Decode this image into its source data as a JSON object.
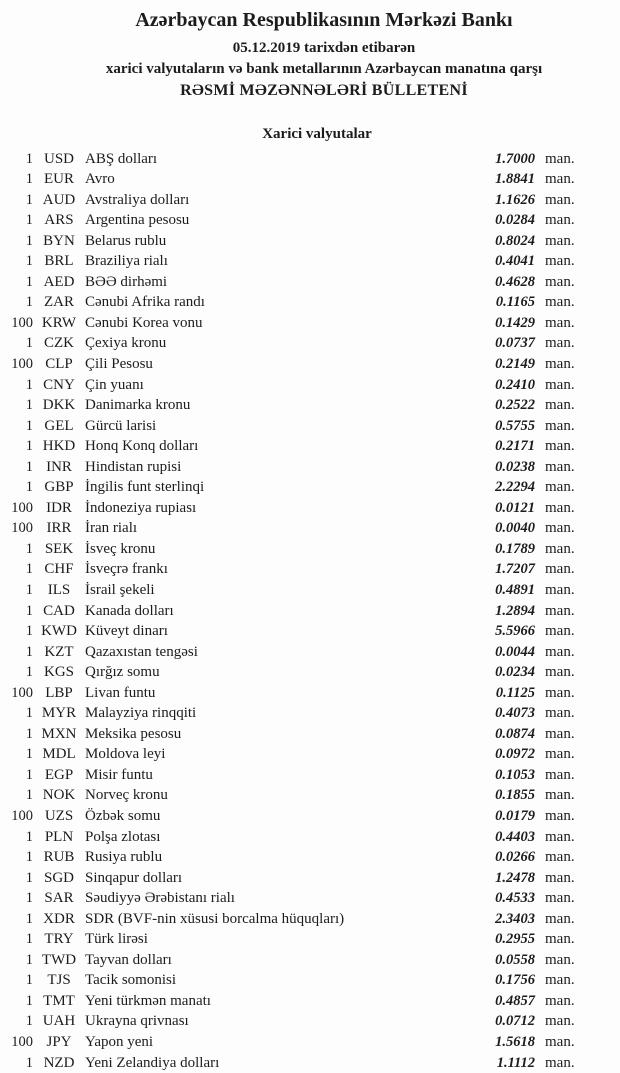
{
  "header": {
    "bank_name": "Azərbaycan Respublikasının Mərkəzi Bankı",
    "date_line": "05.12.2019 tarixdən etibarən",
    "subject_line": "xarici valyutaların və bank metallarının Azərbaycan manatına qarşı",
    "bulletin_line": "RƏSMİ MƏZƏNNƏLƏRİ BÜLLETENİ"
  },
  "section": {
    "title": "Xarici valyutalar"
  },
  "unit_label": "man.",
  "rates": [
    {
      "qty": "1",
      "code": "USD",
      "name": "ABŞ dolları",
      "rate": "1.7000"
    },
    {
      "qty": "1",
      "code": "EUR",
      "name": "Avro",
      "rate": "1.8841"
    },
    {
      "qty": "1",
      "code": "AUD",
      "name": "Avstraliya dolları",
      "rate": "1.1626"
    },
    {
      "qty": "1",
      "code": "ARS",
      "name": "Argentina pesosu",
      "rate": "0.0284"
    },
    {
      "qty": "1",
      "code": "BYN",
      "name": "Belarus rublu",
      "rate": "0.8024"
    },
    {
      "qty": "1",
      "code": "BRL",
      "name": "Braziliya rialı",
      "rate": "0.4041"
    },
    {
      "qty": "1",
      "code": "AED",
      "name": "BƏƏ dirhəmi",
      "rate": "0.4628"
    },
    {
      "qty": "1",
      "code": "ZAR",
      "name": "Cənubi Afrika randı",
      "rate": "0.1165"
    },
    {
      "qty": "100",
      "code": "KRW",
      "name": "Cənubi Korea vonu",
      "rate": "0.1429"
    },
    {
      "qty": "1",
      "code": "CZK",
      "name": "Çexiya kronu",
      "rate": "0.0737"
    },
    {
      "qty": "100",
      "code": "CLP",
      "name": "Çili Pesosu",
      "rate": "0.2149"
    },
    {
      "qty": "1",
      "code": "CNY",
      "name": "Çin yuanı",
      "rate": "0.2410"
    },
    {
      "qty": "1",
      "code": "DKK",
      "name": "Danimarka kronu",
      "rate": "0.2522"
    },
    {
      "qty": "1",
      "code": "GEL",
      "name": "Gürcü larisi",
      "rate": "0.5755"
    },
    {
      "qty": "1",
      "code": "HKD",
      "name": "Honq Konq dolları",
      "rate": "0.2171"
    },
    {
      "qty": "1",
      "code": "INR",
      "name": "Hindistan rupisi",
      "rate": "0.0238"
    },
    {
      "qty": "1",
      "code": "GBP",
      "name": "İngilis funt sterlinqi",
      "rate": "2.2294"
    },
    {
      "qty": "100",
      "code": "IDR",
      "name": "İndoneziya rupiası",
      "rate": "0.0121"
    },
    {
      "qty": "100",
      "code": "IRR",
      "name": "İran rialı",
      "rate": "0.0040"
    },
    {
      "qty": "1",
      "code": "SEK",
      "name": "İsveç kronu",
      "rate": "0.1789"
    },
    {
      "qty": "1",
      "code": "CHF",
      "name": "İsveçrə frankı",
      "rate": "1.7207"
    },
    {
      "qty": "1",
      "code": "ILS",
      "name": "İsrail şekeli",
      "rate": "0.4891"
    },
    {
      "qty": "1",
      "code": "CAD",
      "name": "Kanada dolları",
      "rate": "1.2894"
    },
    {
      "qty": "1",
      "code": "KWD",
      "name": "Küveyt dinarı",
      "rate": "5.5966"
    },
    {
      "qty": "1",
      "code": "KZT",
      "name": "Qazaxıstan tengəsi",
      "rate": "0.0044"
    },
    {
      "qty": "1",
      "code": "KGS",
      "name": "Qırğız somu",
      "rate": "0.0234"
    },
    {
      "qty": "100",
      "code": "LBP",
      "name": "Livan funtu",
      "rate": "0.1125"
    },
    {
      "qty": "1",
      "code": "MYR",
      "name": "Malayziya rinqqiti",
      "rate": "0.4073"
    },
    {
      "qty": "1",
      "code": "MXN",
      "name": "Meksika pesosu",
      "rate": "0.0874"
    },
    {
      "qty": "1",
      "code": "MDL",
      "name": "Moldova leyi",
      "rate": "0.0972"
    },
    {
      "qty": "1",
      "code": "EGP",
      "name": "Misir funtu",
      "rate": "0.1053"
    },
    {
      "qty": "1",
      "code": "NOK",
      "name": "Norveç kronu",
      "rate": "0.1855"
    },
    {
      "qty": "100",
      "code": "UZS",
      "name": "Özbək somu",
      "rate": "0.0179"
    },
    {
      "qty": "1",
      "code": "PLN",
      "name": "Polşa zlotası",
      "rate": "0.4403"
    },
    {
      "qty": "1",
      "code": "RUB",
      "name": "Rusiya rublu",
      "rate": "0.0266"
    },
    {
      "qty": "1",
      "code": "SGD",
      "name": "Sinqapur dolları",
      "rate": "1.2478"
    },
    {
      "qty": "1",
      "code": "SAR",
      "name": "Səudiyyə Ərəbistanı rialı",
      "rate": "0.4533"
    },
    {
      "qty": "1",
      "code": "XDR",
      "name": "SDR (BVF-nin xüsusi borcalma hüquqları)",
      "rate": "2.3403"
    },
    {
      "qty": "1",
      "code": "TRY",
      "name": "Türk lirəsi",
      "rate": "0.2955"
    },
    {
      "qty": "1",
      "code": "TWD",
      "name": "Tayvan dolları",
      "rate": "0.0558"
    },
    {
      "qty": "1",
      "code": "TJS",
      "name": "Tacik somonisi",
      "rate": "0.1756"
    },
    {
      "qty": "1",
      "code": "TMT",
      "name": "Yeni türkmən manatı",
      "rate": "0.4857"
    },
    {
      "qty": "1",
      "code": "UAH",
      "name": "Ukrayna qrivnası",
      "rate": "0.0712"
    },
    {
      "qty": "100",
      "code": "JPY",
      "name": "Yapon yeni",
      "rate": "1.5618"
    },
    {
      "qty": "1",
      "code": "NZD",
      "name": "Yeni Zelandiya dolları",
      "rate": "1.1112"
    }
  ]
}
